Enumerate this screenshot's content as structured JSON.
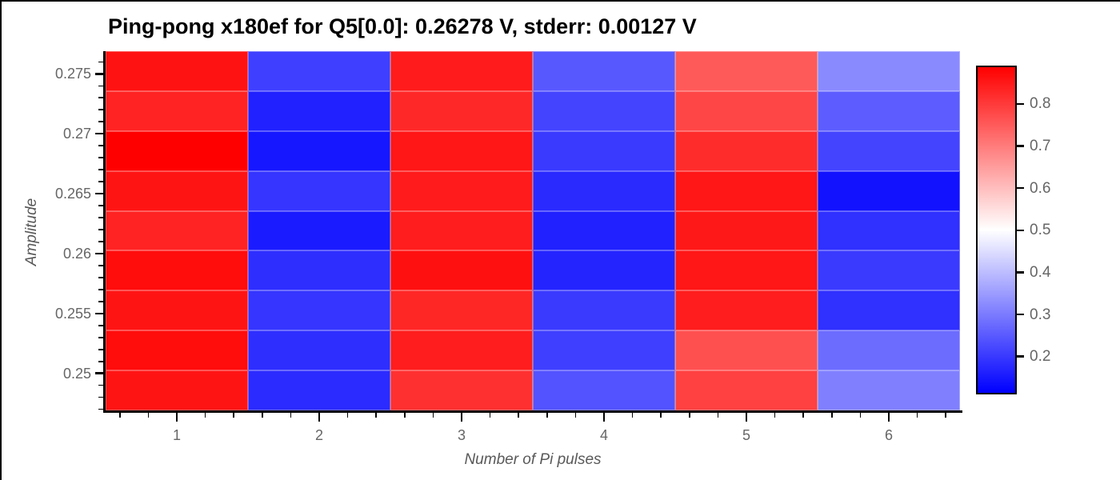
{
  "title": "Ping-pong x180ef for Q5[0.0]: 0.26278 V, stderr: 0.00127 V",
  "chart_data": {
    "type": "heatmap",
    "title": "Ping-pong x180ef for Q5[0.0]: 0.26278 V, stderr: 0.00127 V",
    "xlabel": "Number of Pi pulses",
    "ylabel": "Amplitude",
    "x": [
      1,
      2,
      3,
      4,
      5,
      6
    ],
    "y_row_centers_top_to_bottom": [
      0.2753,
      0.2719,
      0.2686,
      0.2653,
      0.2619,
      0.2586,
      0.2553,
      0.2519,
      0.2486
    ],
    "values_rows_top_to_bottom": [
      [
        0.864,
        0.206,
        0.849,
        0.245,
        0.753,
        0.322
      ],
      [
        0.838,
        0.16,
        0.83,
        0.214,
        0.784,
        0.252
      ],
      [
        0.892,
        0.145,
        0.858,
        0.199,
        0.823,
        0.214
      ],
      [
        0.861,
        0.191,
        0.849,
        0.175,
        0.858,
        0.137
      ],
      [
        0.838,
        0.152,
        0.846,
        0.16,
        0.855,
        0.183
      ],
      [
        0.873,
        0.18,
        0.867,
        0.165,
        0.858,
        0.199
      ],
      [
        0.861,
        0.191,
        0.833,
        0.199,
        0.846,
        0.183
      ],
      [
        0.873,
        0.18,
        0.846,
        0.206,
        0.769,
        0.276
      ],
      [
        0.861,
        0.176,
        0.818,
        0.237,
        0.792,
        0.306
      ]
    ],
    "x_ticks": [
      1,
      2,
      3,
      4,
      5,
      6
    ],
    "x_tick_labels": [
      "1",
      "2",
      "3",
      "4",
      "5",
      "6"
    ],
    "x_minor_tick_step": 0.2,
    "y_ticks": [
      0.275,
      0.27,
      0.265,
      0.26,
      0.255,
      0.25
    ],
    "y_tick_labels": [
      "0.275",
      "0.27",
      "0.265",
      "0.26",
      "0.255",
      "0.25"
    ],
    "y_minor_tick_step": 0.001,
    "xlim": [
      0.5,
      6.5
    ],
    "ylim": [
      0.2469,
      0.2769
    ],
    "colormap": "bwr",
    "colormap_stops": [
      "#0000ff",
      "#ffffff",
      "#ff0000"
    ],
    "vmin": 0.11,
    "vmax": 0.891,
    "colorbar_ticks": [
      0.8,
      0.7,
      0.6,
      0.5,
      0.4,
      0.3,
      0.2
    ],
    "colorbar_tick_labels": [
      "0.8",
      "0.7",
      "0.6",
      "0.5",
      "0.4",
      "0.3",
      "0.2"
    ],
    "grid": false,
    "legend_position": "colorbar-right"
  }
}
